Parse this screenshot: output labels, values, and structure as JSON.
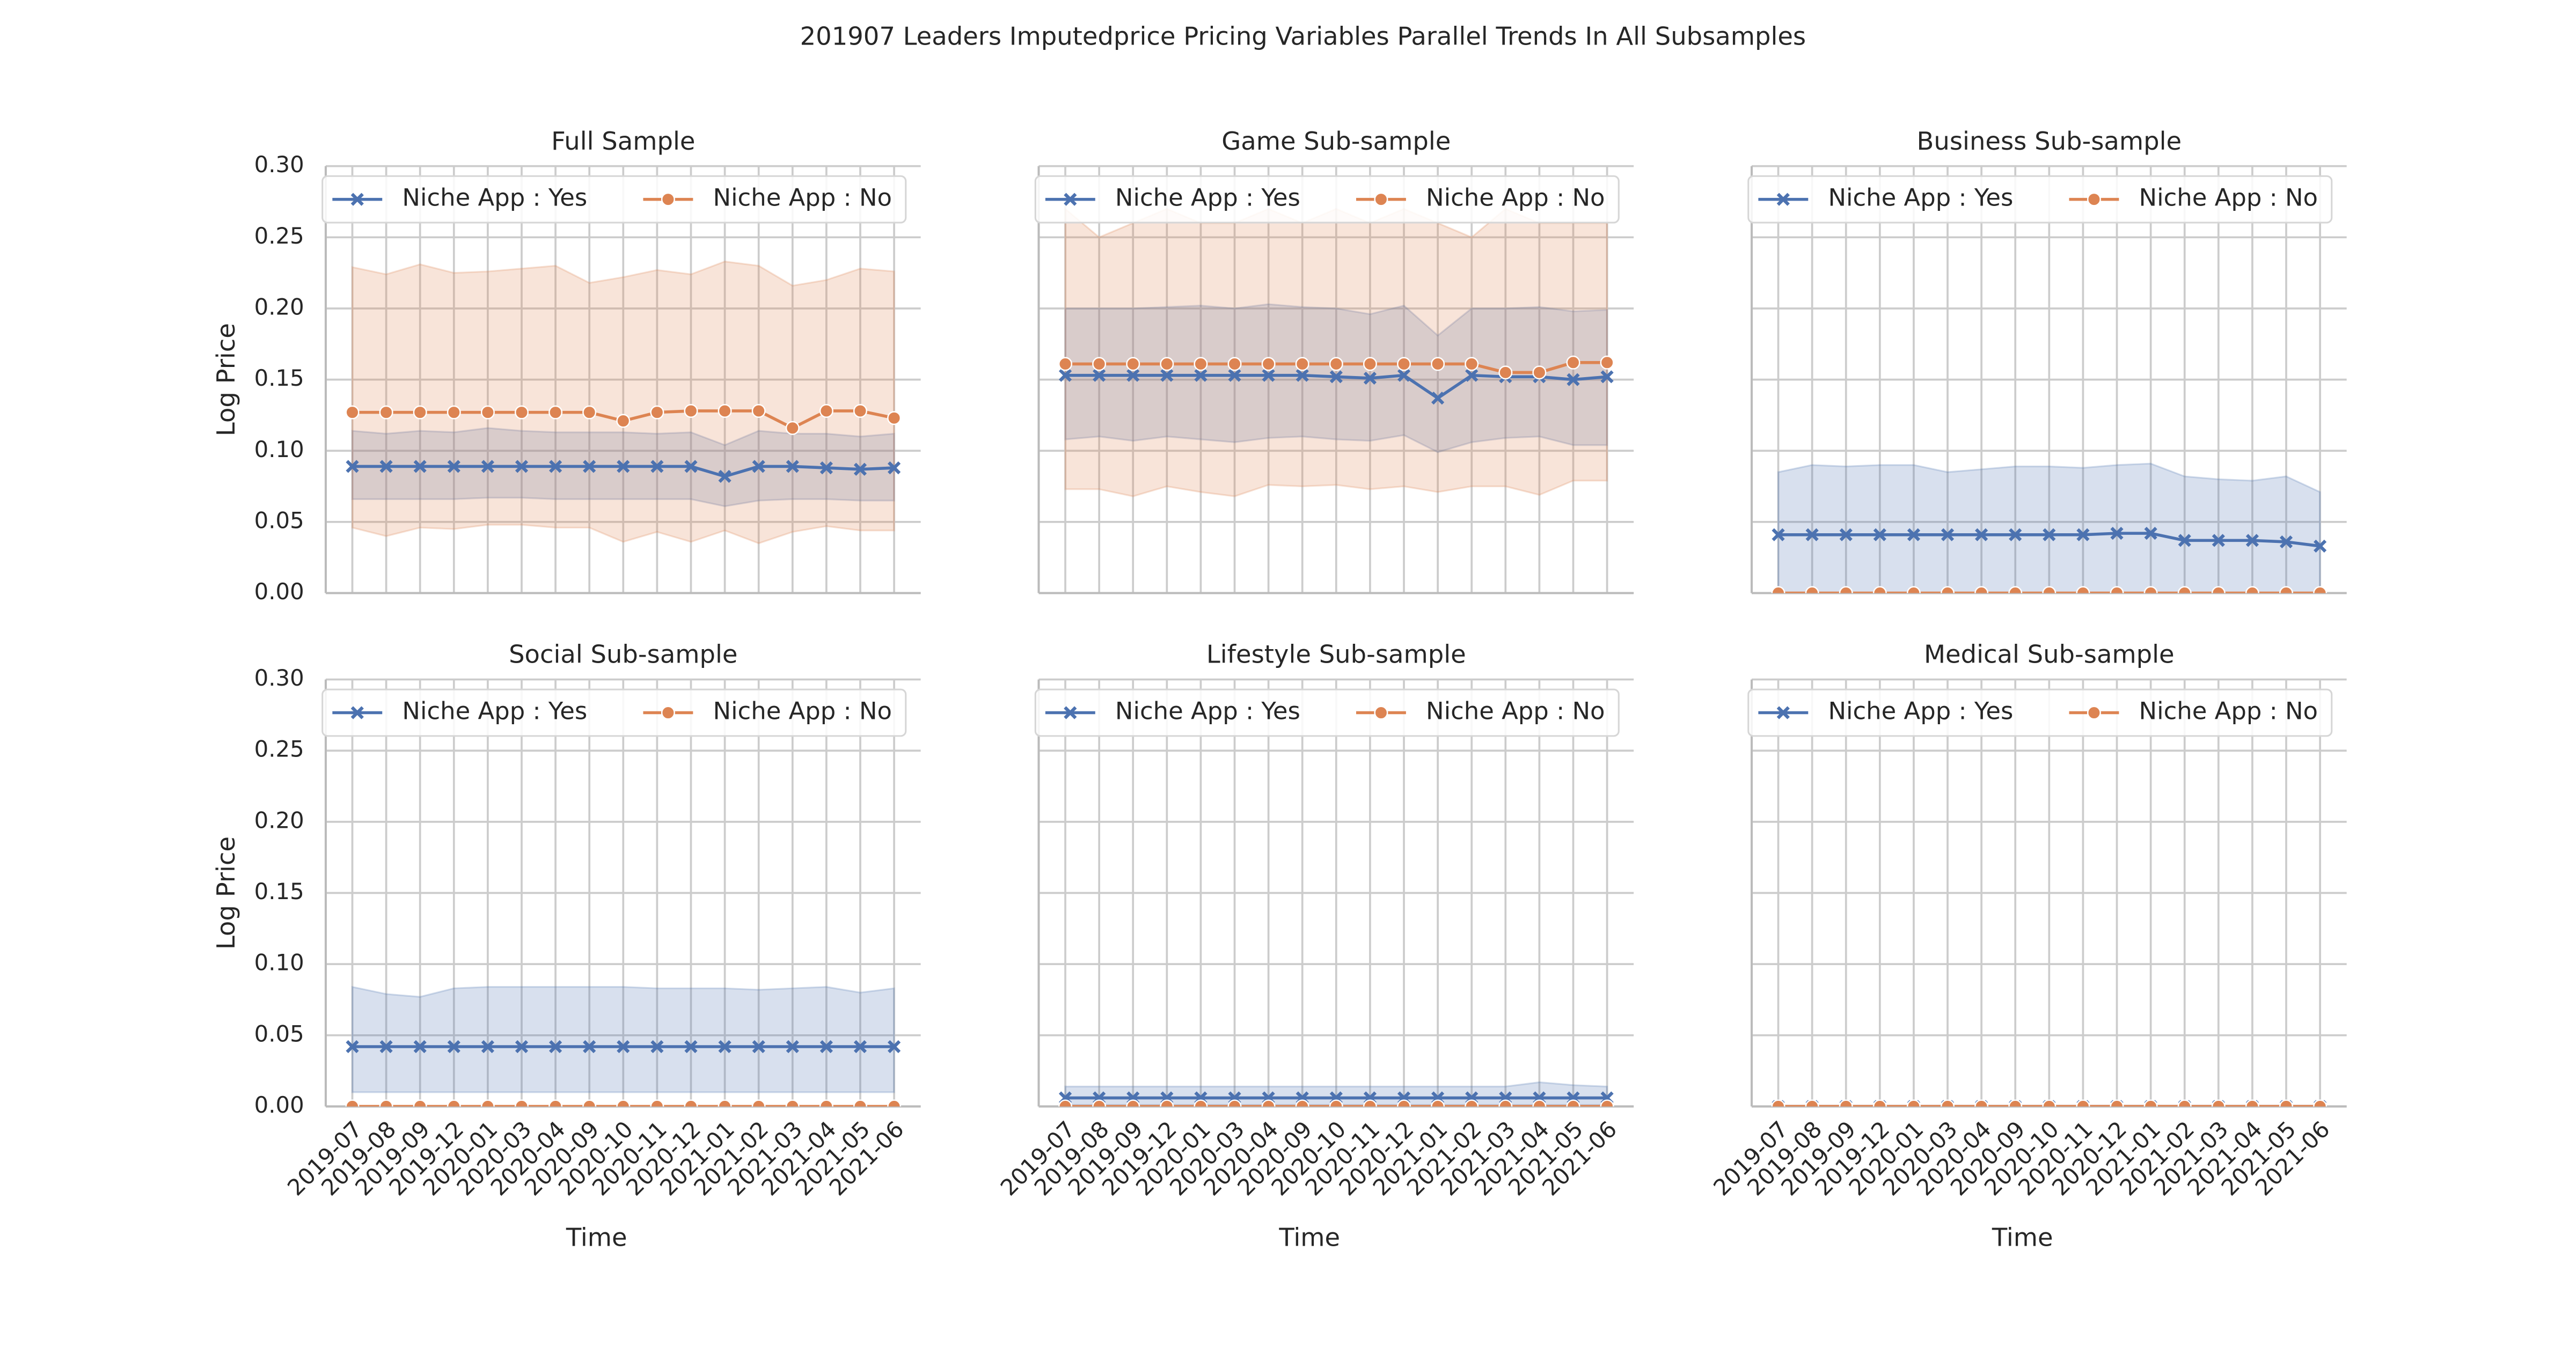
{
  "title": "201907 Leaders Imputedprice Pricing Variables Parallel Trends In All Subsamples",
  "chart_data": [
    {
      "type": "line",
      "title": "Full Sample",
      "ylabel": "Log Price",
      "ylim": [
        0,
        0.3
      ],
      "yticks": [
        {
          "value": 0,
          "label": "0.00"
        },
        0.05,
        {
          "value": 0.1,
          "label": "0.10"
        },
        0.15,
        {
          "value": 0.2,
          "label": "0.20"
        },
        0.25,
        {
          "value": 0.3,
          "label": "0.30"
        }
      ],
      "legend": "upper left",
      "series": [
        {
          "name": "Niche App : Yes",
          "color": "#4c72b0",
          "marker": "x",
          "values": [
            0.089,
            0.089,
            0.089,
            0.089,
            0.089,
            0.089,
            0.089,
            0.089,
            0.089,
            0.089,
            0.089,
            0.082,
            0.089,
            0.089,
            0.088,
            0.087,
            0.088
          ],
          "lower": [
            0.066,
            0.066,
            0.066,
            0.066,
            0.067,
            0.067,
            0.066,
            0.066,
            0.066,
            0.066,
            0.066,
            0.061,
            0.065,
            0.066,
            0.066,
            0.065,
            0.065
          ],
          "upper": [
            0.114,
            0.112,
            0.114,
            0.113,
            0.116,
            0.114,
            0.113,
            0.113,
            0.113,
            0.112,
            0.113,
            0.104,
            0.114,
            0.112,
            0.112,
            0.11,
            0.112
          ]
        },
        {
          "name": "Niche App : No",
          "color": "#dd8452",
          "marker": "o",
          "values": [
            0.127,
            0.127,
            0.127,
            0.127,
            0.127,
            0.127,
            0.127,
            0.127,
            0.121,
            0.127,
            0.128,
            0.128,
            0.128,
            0.116,
            0.128,
            0.128,
            0.123
          ],
          "lower": [
            0.046,
            0.04,
            0.046,
            0.045,
            0.048,
            0.048,
            0.046,
            0.046,
            0.036,
            0.043,
            0.036,
            0.044,
            0.035,
            0.043,
            0.047,
            0.044,
            0.044
          ],
          "upper": [
            0.229,
            0.224,
            0.231,
            0.225,
            0.226,
            0.228,
            0.23,
            0.218,
            0.222,
            0.227,
            0.224,
            0.233,
            0.23,
            0.216,
            0.22,
            0.228,
            0.226
          ]
        }
      ]
    },
    {
      "type": "line",
      "title": "Game Sub-sample",
      "ylim": [
        0,
        0.3
      ],
      "yticks": [
        0,
        0.05,
        0.1,
        0.15,
        0.2,
        0.25,
        0.3
      ],
      "legend": "upper left",
      "series": [
        {
          "name": "Niche App : Yes",
          "color": "#4c72b0",
          "marker": "x",
          "values": [
            0.153,
            0.153,
            0.153,
            0.153,
            0.153,
            0.153,
            0.153,
            0.153,
            0.152,
            0.151,
            0.153,
            0.137,
            0.153,
            0.152,
            0.152,
            0.15,
            0.152
          ],
          "lower": [
            0.108,
            0.11,
            0.107,
            0.11,
            0.108,
            0.106,
            0.109,
            0.11,
            0.108,
            0.107,
            0.111,
            0.099,
            0.106,
            0.109,
            0.11,
            0.104,
            0.104
          ],
          "upper": [
            0.2,
            0.2,
            0.2,
            0.201,
            0.202,
            0.2,
            0.203,
            0.201,
            0.2,
            0.196,
            0.202,
            0.181,
            0.2,
            0.2,
            0.201,
            0.198,
            0.199
          ]
        },
        {
          "name": "Niche App : No",
          "color": "#dd8452",
          "marker": "o",
          "values": [
            0.161,
            0.161,
            0.161,
            0.161,
            0.161,
            0.161,
            0.161,
            0.161,
            0.161,
            0.161,
            0.161,
            0.161,
            0.161,
            0.155,
            0.155,
            0.162,
            0.162
          ],
          "lower": [
            0.073,
            0.073,
            0.068,
            0.075,
            0.071,
            0.068,
            0.076,
            0.075,
            0.076,
            0.073,
            0.075,
            0.071,
            0.075,
            0.075,
            0.069,
            0.079,
            0.079
          ],
          "upper": [
            0.27,
            0.25,
            0.26,
            0.27,
            0.26,
            0.26,
            0.27,
            0.26,
            0.27,
            0.26,
            0.27,
            0.26,
            0.25,
            0.27,
            0.26,
            0.26,
            0.26
          ]
        }
      ]
    },
    {
      "type": "line",
      "title": "Business Sub-sample",
      "ylim": [
        0,
        0.3
      ],
      "yticks": [
        0,
        0.05,
        0.1,
        0.15,
        0.2,
        0.25,
        0.3
      ],
      "legend": "upper left",
      "series": [
        {
          "name": "Niche App : Yes",
          "color": "#4c72b0",
          "marker": "x",
          "values": [
            0.041,
            0.041,
            0.041,
            0.041,
            0.041,
            0.041,
            0.041,
            0.041,
            0.041,
            0.041,
            0.042,
            0.042,
            0.037,
            0.037,
            0.037,
            0.036,
            0.033
          ],
          "lower": [
            0,
            0,
            0,
            0,
            0,
            0,
            0,
            0,
            0,
            0,
            0,
            0,
            0,
            0,
            0,
            0,
            0
          ],
          "upper": [
            0.085,
            0.09,
            0.089,
            0.09,
            0.09,
            0.085,
            0.087,
            0.089,
            0.089,
            0.088,
            0.09,
            0.091,
            0.082,
            0.08,
            0.079,
            0.082,
            0.071
          ]
        },
        {
          "name": "Niche App : No",
          "color": "#dd8452",
          "marker": "o",
          "values": [
            0,
            0,
            0,
            0,
            0,
            0,
            0,
            0,
            0,
            0,
            0,
            0,
            0,
            0,
            0,
            0,
            0
          ]
        }
      ]
    },
    {
      "type": "line",
      "title": "Social Sub-sample",
      "ylabel": "Log Price",
      "xlabel": "Time",
      "categories": [
        "2019-07",
        "2019-08",
        "2019-09",
        "2019-12",
        "2020-01",
        "2020-03",
        "2020-04",
        "2020-09",
        "2020-10",
        "2020-11",
        "2020-12",
        "2021-01",
        "2021-02",
        "2021-03",
        "2021-04",
        "2021-05",
        "2021-06"
      ],
      "ylim": [
        0,
        0.3
      ],
      "yticks": [
        {
          "value": 0,
          "label": "0.00"
        },
        0.05,
        {
          "value": 0.1,
          "label": "0.10"
        },
        0.15,
        {
          "value": 0.2,
          "label": "0.20"
        },
        0.25,
        {
          "value": 0.3,
          "label": "0.30"
        }
      ],
      "legend": "upper left",
      "series": [
        {
          "name": "Niche App : Yes",
          "color": "#4c72b0",
          "marker": "x",
          "values": [
            0.042,
            0.042,
            0.042,
            0.042,
            0.042,
            0.042,
            0.042,
            0.042,
            0.042,
            0.042,
            0.042,
            0.042,
            0.042,
            0.042,
            0.042,
            0.042,
            0.042
          ],
          "lower": [
            0.01,
            0.01,
            0.01,
            0.01,
            0.01,
            0.01,
            0.01,
            0.01,
            0.01,
            0.01,
            0.01,
            0.01,
            0.01,
            0.01,
            0.01,
            0.01,
            0.01
          ],
          "upper": [
            0.084,
            0.079,
            0.077,
            0.083,
            0.084,
            0.084,
            0.084,
            0.084,
            0.084,
            0.083,
            0.083,
            0.083,
            0.082,
            0.083,
            0.084,
            0.08,
            0.083
          ]
        },
        {
          "name": "Niche App : No",
          "color": "#dd8452",
          "marker": "o",
          "values": [
            0,
            0,
            0,
            0,
            0,
            0,
            0,
            0,
            0,
            0,
            0,
            0,
            0,
            0,
            0,
            0,
            0
          ]
        }
      ]
    },
    {
      "type": "line",
      "title": "Lifestyle Sub-sample",
      "xlabel": "Time",
      "categories": [
        "2019-07",
        "2019-08",
        "2019-09",
        "2019-12",
        "2020-01",
        "2020-03",
        "2020-04",
        "2020-09",
        "2020-10",
        "2020-11",
        "2020-12",
        "2021-01",
        "2021-02",
        "2021-03",
        "2021-04",
        "2021-05",
        "2021-06"
      ],
      "ylim": [
        0,
        0.3
      ],
      "yticks": [
        0,
        0.05,
        0.1,
        0.15,
        0.2,
        0.25,
        0.3
      ],
      "legend": "upper left",
      "series": [
        {
          "name": "Niche App : Yes",
          "color": "#4c72b0",
          "marker": "x",
          "values": [
            0.006,
            0.006,
            0.006,
            0.006,
            0.006,
            0.006,
            0.006,
            0.006,
            0.006,
            0.006,
            0.006,
            0.006,
            0.006,
            0.006,
            0.006,
            0.006,
            0.006
          ],
          "lower": [
            0.001,
            0.001,
            0.001,
            0.001,
            0.001,
            0.001,
            0.001,
            0.001,
            0.001,
            0.001,
            0.001,
            0.001,
            0.001,
            0.001,
            0.001,
            0.001,
            0.001
          ],
          "upper": [
            0.014,
            0.014,
            0.014,
            0.014,
            0.014,
            0.014,
            0.014,
            0.014,
            0.014,
            0.014,
            0.014,
            0.014,
            0.014,
            0.014,
            0.017,
            0.015,
            0.014
          ]
        },
        {
          "name": "Niche App : No",
          "color": "#dd8452",
          "marker": "o",
          "values": [
            0,
            0,
            0,
            0,
            0,
            0,
            0,
            0,
            0,
            0,
            0,
            0,
            0,
            0,
            0,
            0,
            0
          ]
        }
      ]
    },
    {
      "type": "line",
      "title": "Medical Sub-sample",
      "xlabel": "Time",
      "categories": [
        "2019-07",
        "2019-08",
        "2019-09",
        "2019-12",
        "2020-01",
        "2020-03",
        "2020-04",
        "2020-09",
        "2020-10",
        "2020-11",
        "2020-12",
        "2021-01",
        "2021-02",
        "2021-03",
        "2021-04",
        "2021-05",
        "2021-06"
      ],
      "ylim": [
        0,
        0.3
      ],
      "yticks": [
        0,
        0.05,
        0.1,
        0.15,
        0.2,
        0.25,
        0.3
      ],
      "legend": "upper left",
      "series": [
        {
          "name": "Niche App : Yes",
          "color": "#4c72b0",
          "marker": "x",
          "values": [
            0,
            0,
            0,
            0,
            0,
            0,
            0,
            0,
            0,
            0,
            0,
            0,
            0,
            0,
            0,
            0,
            0
          ]
        },
        {
          "name": "Niche App : No",
          "color": "#dd8452",
          "marker": "o",
          "values": [
            0,
            0,
            0,
            0,
            0,
            0,
            0,
            0,
            0,
            0,
            0,
            0,
            0,
            0,
            0,
            0,
            0
          ]
        }
      ]
    }
  ]
}
